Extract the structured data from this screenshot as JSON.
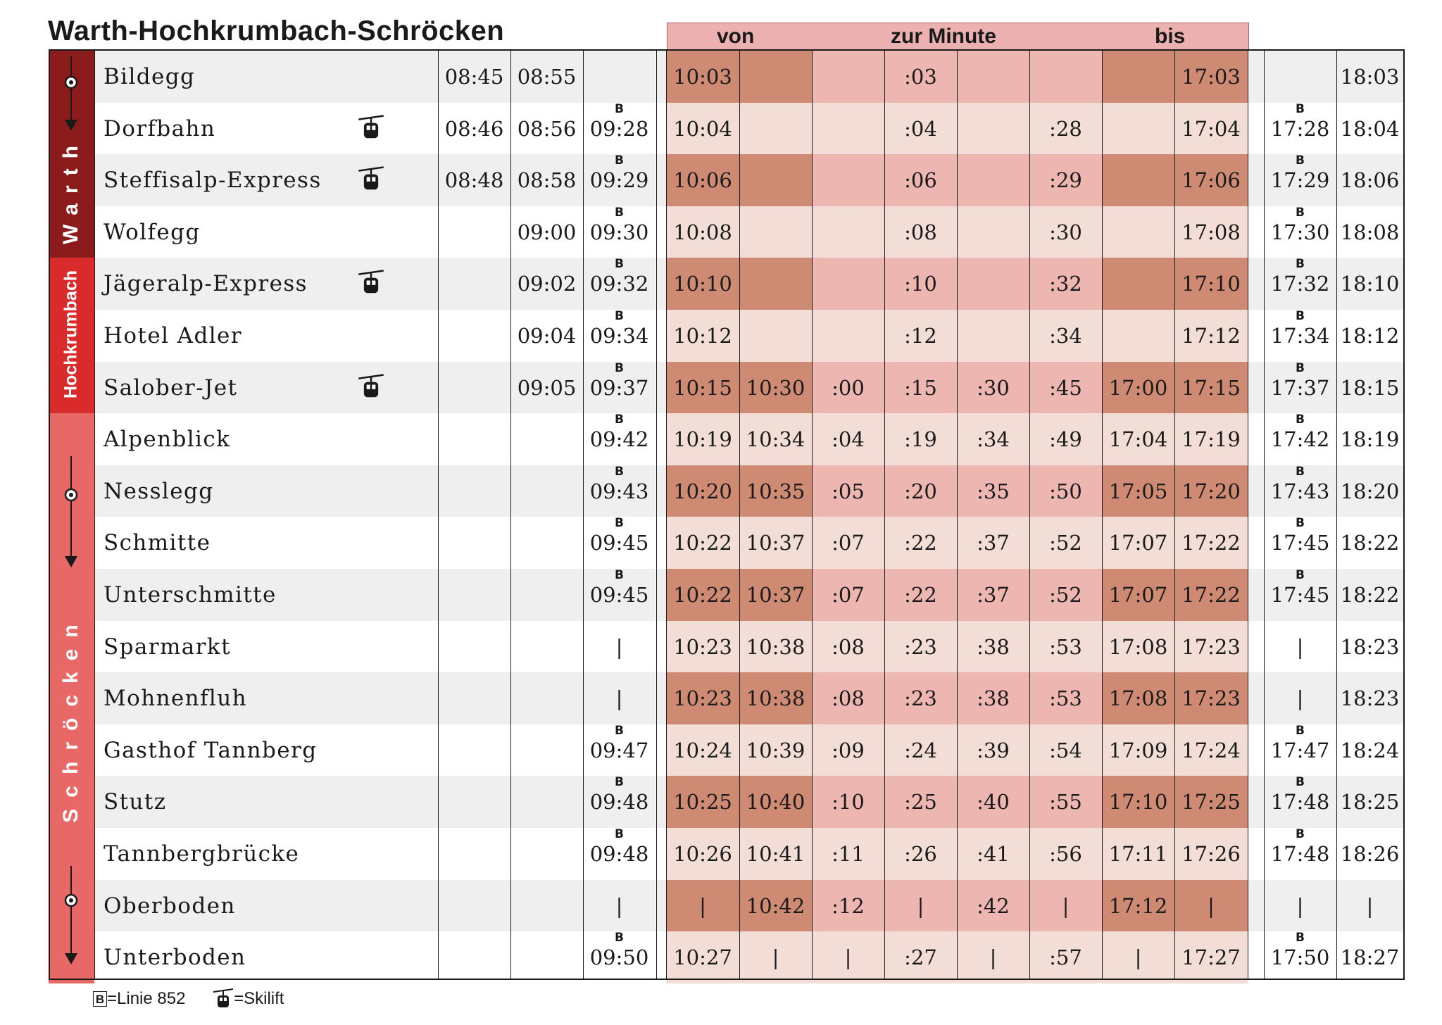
{
  "title": "Warth-Hochkrumbach-Schröcken",
  "header": {
    "von": "von",
    "zur_minute": "zur Minute",
    "bis": "bis"
  },
  "zones": [
    {
      "label": "Warth",
      "color": "#8c1c1c",
      "rows": [
        0,
        3
      ]
    },
    {
      "label": "Hochkrumbach",
      "color": "#d92b2b",
      "rows": [
        4,
        6
      ]
    },
    {
      "label": "Schröcken",
      "color": "#e86868",
      "rows": [
        7,
        17
      ]
    }
  ],
  "colors": {
    "dark": "#cf8a74",
    "medium": "#edb6b1",
    "light": "#f2ded7",
    "gray": "#efefef",
    "white": "#ffffff"
  },
  "stops": [
    {
      "name": "Bildegg",
      "lift": false,
      "times": [
        "08:45",
        "08:55",
        "",
        "10:03",
        "",
        "",
        ":03",
        "",
        "",
        "",
        "17:03",
        "",
        "18:03"
      ],
      "b": []
    },
    {
      "name": "Dorfbahn",
      "lift": true,
      "times": [
        "08:46",
        "08:56",
        "09:28",
        "10:04",
        "",
        "",
        ":04",
        "",
        ":28",
        "",
        "17:04",
        "17:28",
        "18:04"
      ],
      "b": [
        2,
        11
      ]
    },
    {
      "name": "Steffisalp-Express",
      "lift": true,
      "times": [
        "08:48",
        "08:58",
        "09:29",
        "10:06",
        "",
        "",
        ":06",
        "",
        ":29",
        "",
        "17:06",
        "17:29",
        "18:06"
      ],
      "b": [
        2,
        11
      ]
    },
    {
      "name": "Wolfegg",
      "lift": false,
      "times": [
        "",
        "09:00",
        "09:30",
        "10:08",
        "",
        "",
        ":08",
        "",
        ":30",
        "",
        "17:08",
        "17:30",
        "18:08"
      ],
      "b": [
        2,
        11
      ]
    },
    {
      "name": "Jägeralp-Express",
      "lift": true,
      "times": [
        "",
        "09:02",
        "09:32",
        "10:10",
        "",
        "",
        ":10",
        "",
        ":32",
        "",
        "17:10",
        "17:32",
        "18:10"
      ],
      "b": [
        2,
        11
      ]
    },
    {
      "name": "Hotel Adler",
      "lift": false,
      "times": [
        "",
        "09:04",
        "09:34",
        "10:12",
        "",
        "",
        ":12",
        "",
        ":34",
        "",
        "17:12",
        "17:34",
        "18:12"
      ],
      "b": [
        2,
        11
      ]
    },
    {
      "name": "Salober-Jet",
      "lift": true,
      "times": [
        "",
        "09:05",
        "09:37",
        "10:15",
        "10:30",
        ":00",
        ":15",
        ":30",
        ":45",
        "17:00",
        "17:15",
        "17:37",
        "18:15"
      ],
      "b": [
        2,
        11
      ]
    },
    {
      "name": "Alpenblick",
      "lift": false,
      "times": [
        "",
        "",
        "09:42",
        "10:19",
        "10:34",
        ":04",
        ":19",
        ":34",
        ":49",
        "17:04",
        "17:19",
        "17:42",
        "18:19"
      ],
      "b": [
        2,
        11
      ]
    },
    {
      "name": "Nesslegg",
      "lift": false,
      "times": [
        "",
        "",
        "09:43",
        "10:20",
        "10:35",
        ":05",
        ":20",
        ":35",
        ":50",
        "17:05",
        "17:20",
        "17:43",
        "18:20"
      ],
      "b": [
        2,
        11
      ]
    },
    {
      "name": "Schmitte",
      "lift": false,
      "times": [
        "",
        "",
        "09:45",
        "10:22",
        "10:37",
        ":07",
        ":22",
        ":37",
        ":52",
        "17:07",
        "17:22",
        "17:45",
        "18:22"
      ],
      "b": [
        2,
        11
      ]
    },
    {
      "name": "Unterschmitte",
      "lift": false,
      "times": [
        "",
        "",
        "09:45",
        "10:22",
        "10:37",
        ":07",
        ":22",
        ":37",
        ":52",
        "17:07",
        "17:22",
        "17:45",
        "18:22"
      ],
      "b": [
        2,
        11
      ]
    },
    {
      "name": "Sparmarkt",
      "lift": false,
      "times": [
        "",
        "",
        "|",
        "10:23",
        "10:38",
        ":08",
        ":23",
        ":38",
        ":53",
        "17:08",
        "17:23",
        "|",
        "18:23"
      ],
      "b": []
    },
    {
      "name": "Mohnenfluh",
      "lift": false,
      "times": [
        "",
        "",
        "|",
        "10:23",
        "10:38",
        ":08",
        ":23",
        ":38",
        ":53",
        "17:08",
        "17:23",
        "|",
        "18:23"
      ],
      "b": []
    },
    {
      "name": "Gasthof Tannberg",
      "lift": false,
      "times": [
        "",
        "",
        "09:47",
        "10:24",
        "10:39",
        ":09",
        ":24",
        ":39",
        ":54",
        "17:09",
        "17:24",
        "17:47",
        "18:24"
      ],
      "b": [
        2,
        11
      ]
    },
    {
      "name": "Stutz",
      "lift": false,
      "times": [
        "",
        "",
        "09:48",
        "10:25",
        "10:40",
        ":10",
        ":25",
        ":40",
        ":55",
        "17:10",
        "17:25",
        "17:48",
        "18:25"
      ],
      "b": [
        2,
        11
      ]
    },
    {
      "name": "Tannbergbrücke",
      "lift": false,
      "times": [
        "",
        "",
        "09:48",
        "10:26",
        "10:41",
        ":11",
        ":26",
        ":41",
        ":56",
        "17:11",
        "17:26",
        "17:48",
        "18:26"
      ],
      "b": [
        2,
        11
      ]
    },
    {
      "name": "Oberboden",
      "lift": false,
      "times": [
        "",
        "",
        "|",
        "|",
        "10:42",
        ":12",
        "|",
        ":42",
        "|",
        "17:12",
        "|",
        "|",
        "|"
      ],
      "b": []
    },
    {
      "name": "Unterboden",
      "lift": false,
      "times": [
        "",
        "",
        "09:50",
        "10:27",
        "|",
        "|",
        ":27",
        "|",
        ":57",
        "|",
        "17:27",
        "17:50",
        "18:27"
      ],
      "b": [
        2,
        11
      ]
    }
  ],
  "b_glyph": "B",
  "legend": {
    "b_symbol": "B",
    "b_text": "=Linie 852",
    "lift_text": "=Skilift"
  }
}
